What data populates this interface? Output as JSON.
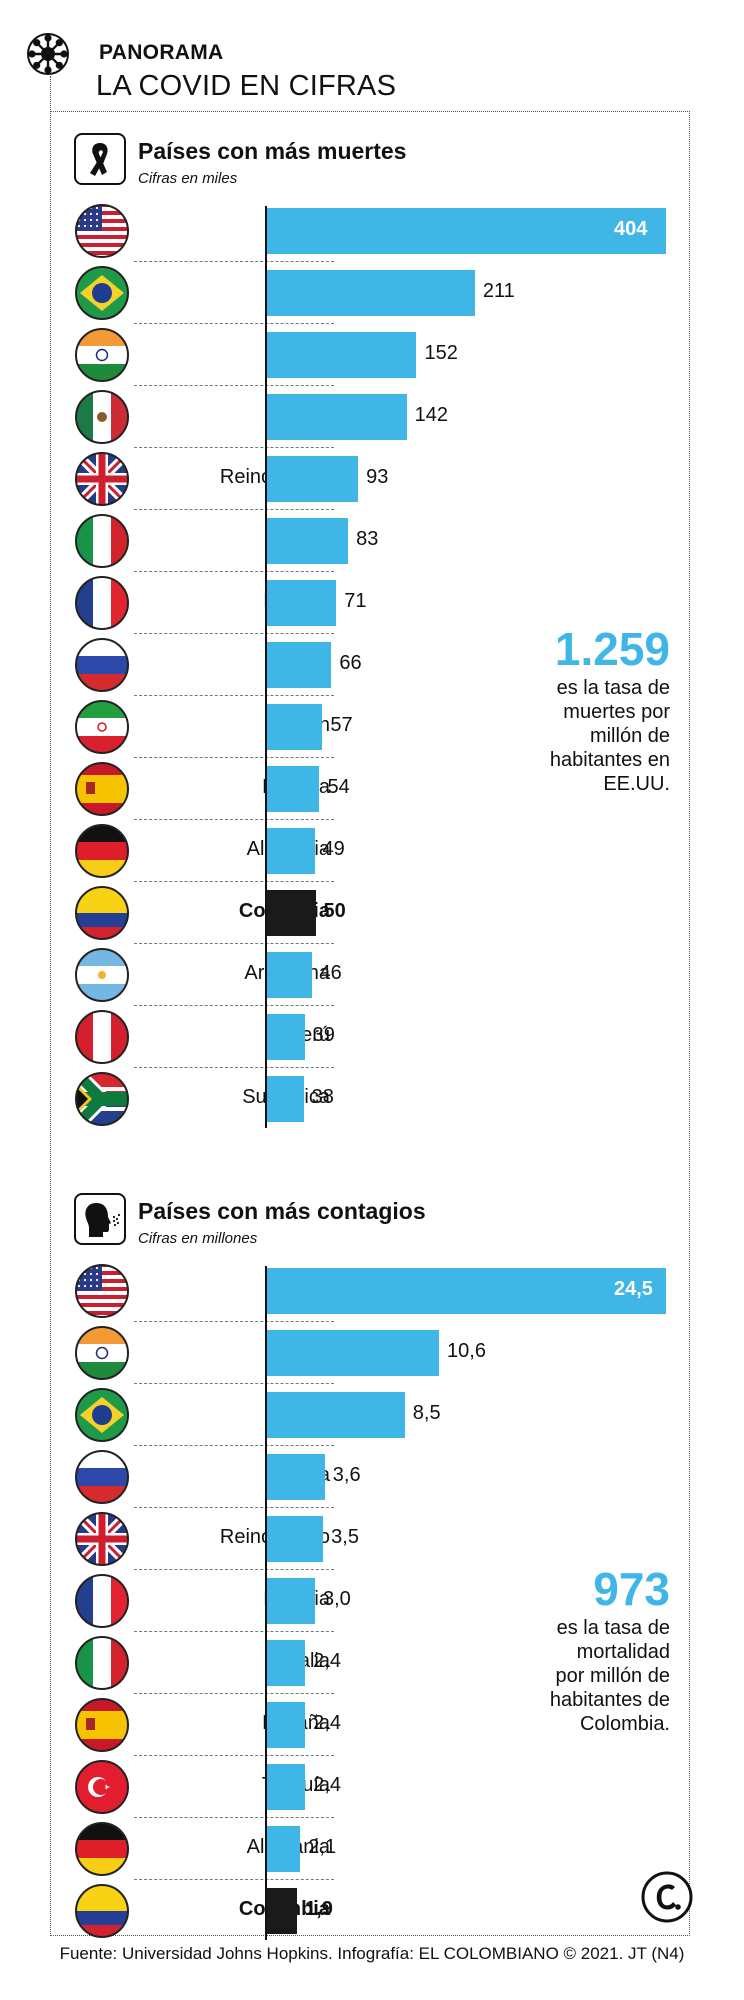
{
  "header": {
    "section_label": "PANORAMA",
    "section_title": "LA COVID EN CIFRAS"
  },
  "chart_data": [
    {
      "type": "bar",
      "title": "Países con más muertes",
      "subtitle": "Cifras en miles",
      "icon": "mourning-ribbon-icon",
      "categories": [
        "EE.UU.",
        "Brasil",
        "India",
        "México",
        "Reino Unido",
        "Italia",
        "Francia",
        "Rusia",
        "Irán",
        "España",
        "Alemania",
        "Colombia",
        "Argentina",
        "Perú",
        "Sur África"
      ],
      "values": [
        404,
        211,
        152,
        142,
        93,
        83,
        71,
        66,
        57,
        54,
        49,
        50,
        46,
        39,
        38
      ],
      "value_labels": [
        "404",
        "211",
        "152",
        "142",
        "93",
        "83",
        "71",
        "66",
        "57",
        "54",
        "49",
        "50",
        "46",
        "39",
        "38"
      ],
      "highlight": "Colombia",
      "callout": {
        "number": "1.259",
        "text": [
          "es la tasa de",
          "muertes por",
          "millón de",
          "habitantes en",
          "EE.UU."
        ]
      }
    },
    {
      "type": "bar",
      "title": "Países con más contagios",
      "subtitle": "Cifras en millones",
      "icon": "coughing-person-icon",
      "categories": [
        "EE.UU.",
        "India",
        "Brasil",
        "Rusia",
        "Reino Unido",
        "Francia",
        "Italia",
        "España",
        "Turquía",
        "Alemania",
        "Colombia"
      ],
      "values": [
        24.5,
        10.6,
        8.5,
        3.6,
        3.5,
        3.0,
        2.4,
        2.4,
        2.4,
        2.1,
        1.9
      ],
      "value_labels": [
        "24,5",
        "10,6",
        "8,5",
        "3,6",
        "3,5",
        "3,0",
        "2,4",
        "2,4",
        "2,4",
        "2,1",
        "1,9"
      ],
      "highlight": "Colombia",
      "callout": {
        "number": "973",
        "text": [
          "es la tasa de",
          "mortalidad",
          "por millón de",
          "habitantes de",
          "Colombia."
        ]
      }
    }
  ],
  "colors": {
    "bar": "#40b6e6",
    "highlight_bar": "#1a1a1a",
    "callout_number": "#40b6e6"
  },
  "flags": {
    "EE.UU.": "us-flag-icon",
    "Brasil": "brazil-flag-icon",
    "India": "india-flag-icon",
    "México": "mexico-flag-icon",
    "Reino Unido": "uk-flag-icon",
    "Italia": "italy-flag-icon",
    "Francia": "france-flag-icon",
    "Rusia": "russia-flag-icon",
    "Irán": "iran-flag-icon",
    "España": "spain-flag-icon",
    "Alemania": "germany-flag-icon",
    "Colombia": "colombia-flag-icon",
    "Argentina": "argentina-flag-icon",
    "Perú": "peru-flag-icon",
    "Sur África": "south-africa-flag-icon",
    "Turquía": "turkey-flag-icon"
  },
  "logo": "el-colombiano-logo",
  "footer": {
    "source": "Fuente: Universidad Johns Hopkins. Infografía: EL COLOMBIANO © 2021. JT (N4)"
  }
}
